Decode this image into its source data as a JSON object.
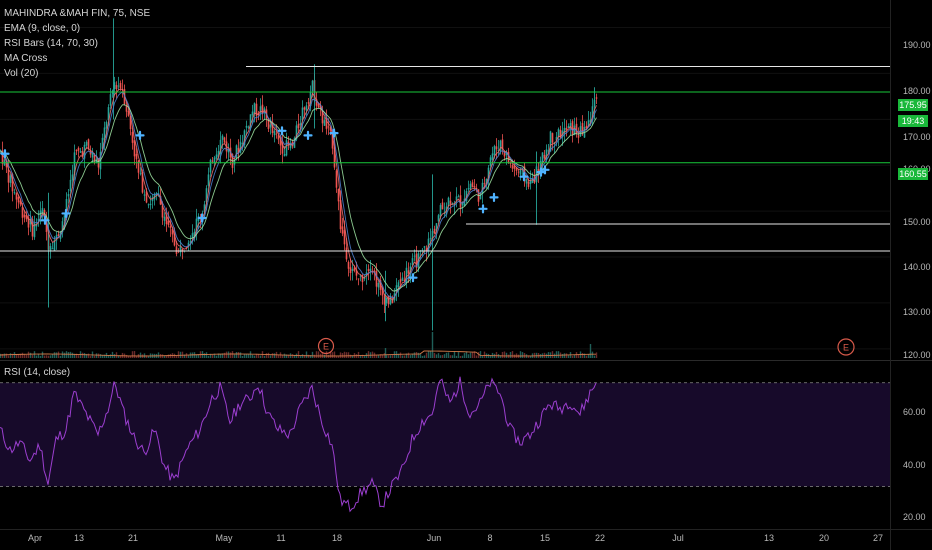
{
  "legend": {
    "symbol": "MAHINDRA &MAH FIN, 75, NSE",
    "ema": "EMA (9, close, 0)",
    "rsi_bars": "RSI Bars (14, 70, 30)",
    "ma_cross": "MA Cross",
    "vol": "Vol (20)"
  },
  "rsi_panel": {
    "label": "RSI (14, close)"
  },
  "price_axis": [
    "190.00",
    "180.00",
    "170.00",
    "160.00",
    "150.00",
    "140.00",
    "130.00",
    "120.00"
  ],
  "rsi_axis": [
    "60.00",
    "40.00",
    "20.00"
  ],
  "badges": {
    "last_price": "175.95",
    "countdown": "19:43",
    "level": "160.55"
  },
  "time_axis": [
    "Apr",
    "13",
    "21",
    "May",
    "11",
    "18",
    "Jun",
    "8",
    "15",
    "22",
    "Jul",
    "13",
    "20",
    "27"
  ],
  "earnings_marker": "E",
  "colors": {
    "bull": "#26a69a",
    "bear": "#ef5350",
    "ema": "#4e7fd0",
    "ma_slow": "#9be0a0",
    "ma_fast": "#ef6b6b",
    "rsi_line": "#9c3fd0",
    "green_level": "#19c93a",
    "white_level": "#e6e6e6",
    "cross_marker": "#4fb3ff"
  },
  "chart_data": {
    "type": "candlestick",
    "ylim": [
      118,
      196
    ],
    "rsi_ylim": [
      14,
      78
    ],
    "rsi_bands": [
      70,
      30
    ],
    "horizontal_levels": [
      {
        "price": 181.5,
        "kind": "white",
        "from": "May 7"
      },
      {
        "price": 175.95,
        "kind": "green"
      },
      {
        "price": 160.55,
        "kind": "green"
      },
      {
        "price": 147.2,
        "kind": "white",
        "from": "Jun 1"
      },
      {
        "price": 141.3,
        "kind": "white"
      }
    ],
    "close_path": [
      {
        "x": 0,
        "p": 163
      },
      {
        "x": 12,
        "p": 155
      },
      {
        "x": 22,
        "p": 150
      },
      {
        "x": 32,
        "p": 146
      },
      {
        "x": 42,
        "p": 150
      },
      {
        "x": 48,
        "p": 143
      },
      {
        "x": 56,
        "p": 144
      },
      {
        "x": 65,
        "p": 150
      },
      {
        "x": 74,
        "p": 162
      },
      {
        "x": 86,
        "p": 164
      },
      {
        "x": 98,
        "p": 160
      },
      {
        "x": 106,
        "p": 170
      },
      {
        "x": 114,
        "p": 178
      },
      {
        "x": 122,
        "p": 177
      },
      {
        "x": 130,
        "p": 168
      },
      {
        "x": 138,
        "p": 158
      },
      {
        "x": 148,
        "p": 152
      },
      {
        "x": 158,
        "p": 153
      },
      {
        "x": 168,
        "p": 146
      },
      {
        "x": 178,
        "p": 141
      },
      {
        "x": 190,
        "p": 145
      },
      {
        "x": 202,
        "p": 150
      },
      {
        "x": 212,
        "p": 162
      },
      {
        "x": 222,
        "p": 166
      },
      {
        "x": 232,
        "p": 161
      },
      {
        "x": 242,
        "p": 166
      },
      {
        "x": 252,
        "p": 172
      },
      {
        "x": 262,
        "p": 172
      },
      {
        "x": 272,
        "p": 167
      },
      {
        "x": 282,
        "p": 164
      },
      {
        "x": 292,
        "p": 164
      },
      {
        "x": 302,
        "p": 172
      },
      {
        "x": 312,
        "p": 177
      },
      {
        "x": 322,
        "p": 170
      },
      {
        "x": 332,
        "p": 165
      },
      {
        "x": 340,
        "p": 147
      },
      {
        "x": 350,
        "p": 137
      },
      {
        "x": 360,
        "p": 135
      },
      {
        "x": 370,
        "p": 139
      },
      {
        "x": 380,
        "p": 132
      },
      {
        "x": 390,
        "p": 130
      },
      {
        "x": 400,
        "p": 135
      },
      {
        "x": 410,
        "p": 138
      },
      {
        "x": 420,
        "p": 140
      },
      {
        "x": 430,
        "p": 144
      },
      {
        "x": 440,
        "p": 150
      },
      {
        "x": 450,
        "p": 153
      },
      {
        "x": 460,
        "p": 152
      },
      {
        "x": 470,
        "p": 156
      },
      {
        "x": 480,
        "p": 153
      },
      {
        "x": 490,
        "p": 162
      },
      {
        "x": 500,
        "p": 165
      },
      {
        "x": 510,
        "p": 160
      },
      {
        "x": 520,
        "p": 158
      },
      {
        "x": 530,
        "p": 156
      },
      {
        "x": 540,
        "p": 160
      },
      {
        "x": 550,
        "p": 166
      },
      {
        "x": 560,
        "p": 167
      },
      {
        "x": 570,
        "p": 168
      },
      {
        "x": 580,
        "p": 167
      },
      {
        "x": 590,
        "p": 170
      },
      {
        "x": 596,
        "p": 176
      }
    ],
    "spikes": [
      {
        "x": 48,
        "high": 154,
        "low": 129
      },
      {
        "x": 113,
        "high": 192,
        "low": 170
      },
      {
        "x": 314,
        "high": 182,
        "low": 168
      },
      {
        "x": 385,
        "high": 137,
        "low": 126
      },
      {
        "x": 432,
        "high": 158,
        "low": 124
      },
      {
        "x": 536,
        "high": 163,
        "low": 147
      },
      {
        "x": 594,
        "high": 177,
        "low": 170
      }
    ],
    "cross_markers": [
      {
        "x": 5,
        "p": 162.5
      },
      {
        "x": 45,
        "p": 148
      },
      {
        "x": 66,
        "p": 149.5
      },
      {
        "x": 140,
        "p": 166.5
      },
      {
        "x": 202,
        "p": 148.5
      },
      {
        "x": 282,
        "p": 167.5
      },
      {
        "x": 308,
        "p": 166.5
      },
      {
        "x": 334,
        "p": 167
      },
      {
        "x": 413,
        "p": 135.5
      },
      {
        "x": 483,
        "p": 150.5
      },
      {
        "x": 494,
        "p": 153
      },
      {
        "x": 524,
        "p": 157.5
      },
      {
        "x": 541,
        "p": 158.5
      },
      {
        "x": 545,
        "p": 159
      }
    ],
    "rsi_path": [
      {
        "x": 0,
        "v": 52
      },
      {
        "x": 10,
        "v": 44
      },
      {
        "x": 20,
        "v": 47
      },
      {
        "x": 30,
        "v": 40
      },
      {
        "x": 40,
        "v": 46
      },
      {
        "x": 48,
        "v": 31
      },
      {
        "x": 56,
        "v": 48
      },
      {
        "x": 66,
        "v": 52
      },
      {
        "x": 74,
        "v": 66
      },
      {
        "x": 86,
        "v": 58
      },
      {
        "x": 98,
        "v": 50
      },
      {
        "x": 108,
        "v": 60
      },
      {
        "x": 115,
        "v": 70
      },
      {
        "x": 124,
        "v": 58
      },
      {
        "x": 134,
        "v": 49
      },
      {
        "x": 144,
        "v": 43
      },
      {
        "x": 155,
        "v": 52
      },
      {
        "x": 164,
        "v": 38
      },
      {
        "x": 174,
        "v": 32
      },
      {
        "x": 188,
        "v": 45
      },
      {
        "x": 200,
        "v": 52
      },
      {
        "x": 212,
        "v": 64
      },
      {
        "x": 220,
        "v": 68
      },
      {
        "x": 230,
        "v": 55
      },
      {
        "x": 240,
        "v": 62
      },
      {
        "x": 250,
        "v": 64
      },
      {
        "x": 258,
        "v": 70
      },
      {
        "x": 268,
        "v": 58
      },
      {
        "x": 278,
        "v": 52
      },
      {
        "x": 290,
        "v": 50
      },
      {
        "x": 300,
        "v": 60
      },
      {
        "x": 312,
        "v": 68
      },
      {
        "x": 322,
        "v": 55
      },
      {
        "x": 332,
        "v": 46
      },
      {
        "x": 340,
        "v": 25
      },
      {
        "x": 350,
        "v": 22
      },
      {
        "x": 362,
        "v": 28
      },
      {
        "x": 372,
        "v": 31
      },
      {
        "x": 382,
        "v": 23
      },
      {
        "x": 392,
        "v": 30
      },
      {
        "x": 402,
        "v": 36
      },
      {
        "x": 412,
        "v": 48
      },
      {
        "x": 422,
        "v": 55
      },
      {
        "x": 432,
        "v": 58
      },
      {
        "x": 440,
        "v": 71
      },
      {
        "x": 450,
        "v": 62
      },
      {
        "x": 460,
        "v": 70
      },
      {
        "x": 470,
        "v": 58
      },
      {
        "x": 480,
        "v": 62
      },
      {
        "x": 490,
        "v": 70
      },
      {
        "x": 500,
        "v": 66
      },
      {
        "x": 510,
        "v": 52
      },
      {
        "x": 520,
        "v": 47
      },
      {
        "x": 530,
        "v": 50
      },
      {
        "x": 540,
        "v": 56
      },
      {
        "x": 550,
        "v": 62
      },
      {
        "x": 560,
        "v": 60
      },
      {
        "x": 570,
        "v": 63
      },
      {
        "x": 580,
        "v": 58
      },
      {
        "x": 590,
        "v": 66
      },
      {
        "x": 596,
        "v": 70
      }
    ]
  }
}
